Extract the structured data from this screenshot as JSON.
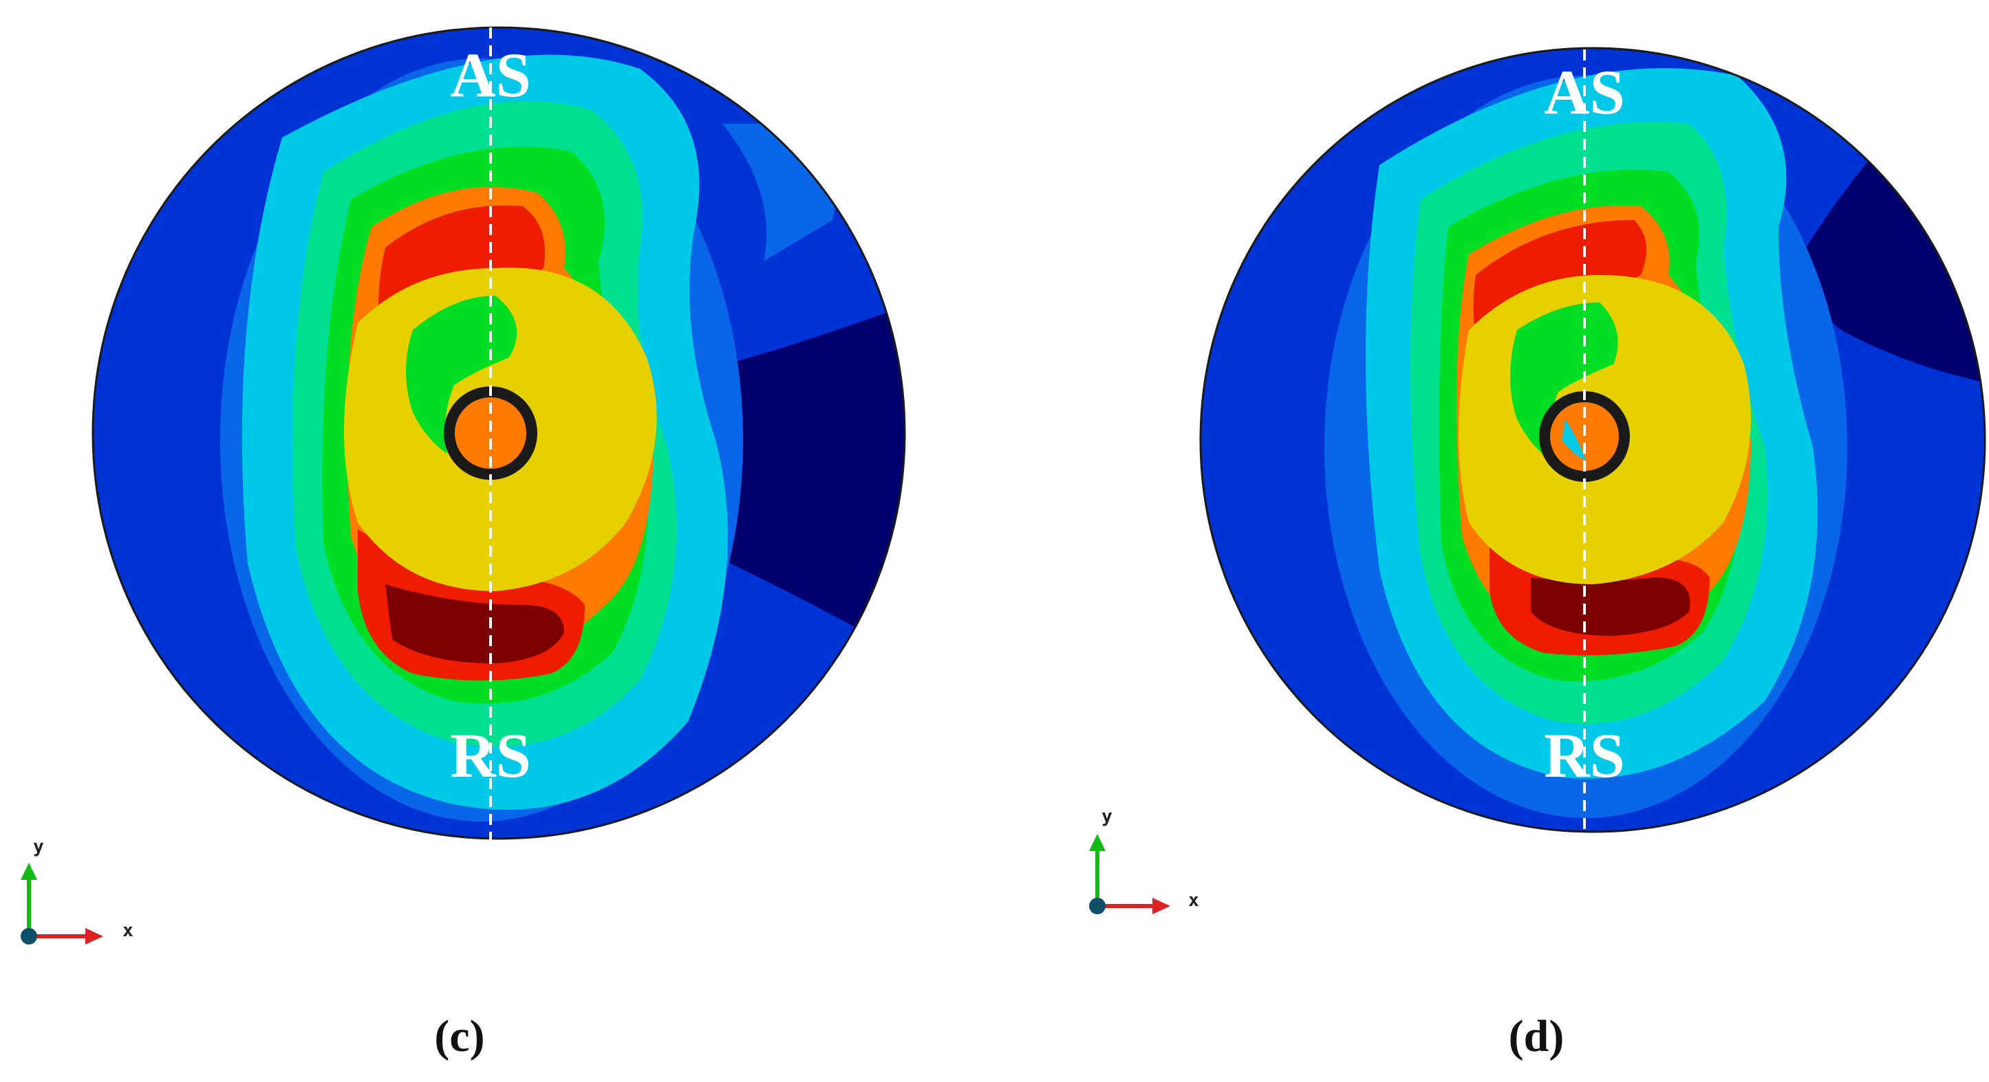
{
  "panels": [
    {
      "caption": "(c)",
      "top_label": "AS",
      "bottom_label": "RS",
      "axis_y": "y",
      "axis_x": "x"
    },
    {
      "caption": "(d)",
      "top_label": "AS",
      "bottom_label": "RS",
      "axis_y": "y",
      "axis_x": "x"
    }
  ],
  "colors": {
    "dark_navy": "#00006e",
    "blue": "#0033d6",
    "mid_blue": "#0a66e8",
    "cyan": "#00c8e6",
    "green_cyan": "#00e090",
    "green": "#00dd22",
    "yellow": "#e6d000",
    "orange": "#ff7a00",
    "red": "#ee1c00",
    "dark_red": "#7d0000",
    "tool_dark": "#1a1a1a"
  }
}
